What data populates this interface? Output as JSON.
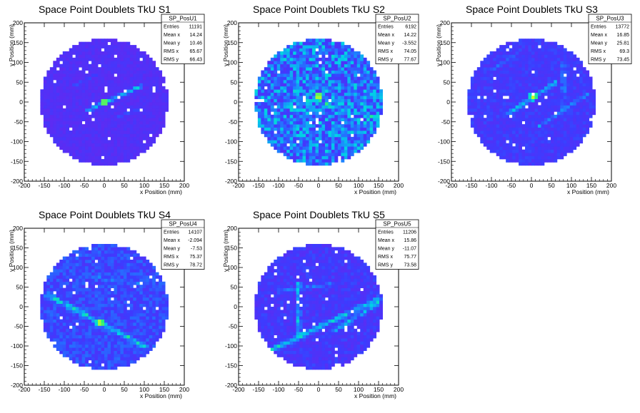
{
  "chart_data": [
    {
      "type": "heatmap",
      "title": "Space Point Doublets TkU S1",
      "xlabel": "x Position (mm)",
      "ylabel": "y Position (mm)",
      "xlim": [
        -200,
        200
      ],
      "ylim": [
        -200,
        200
      ],
      "xticks": [
        -200,
        -150,
        -100,
        -50,
        0,
        50,
        100,
        150,
        200
      ],
      "yticks": [
        -200,
        -150,
        -100,
        -50,
        0,
        50,
        100,
        150,
        200
      ],
      "stats": {
        "name": "SP_PosU1",
        "rows": [
          [
            "Entries",
            "11191"
          ],
          [
            "Mean x",
            "14.24"
          ],
          [
            "Mean y",
            "10.46"
          ],
          [
            "RMS x",
            "65.67"
          ],
          [
            "RMS y",
            "66.43"
          ]
        ]
      },
      "disk_radius": 160,
      "background_level": 0.08,
      "noise": 0.05,
      "features": [
        {
          "kind": "line",
          "x0": -40,
          "y0": -20,
          "x1": 90,
          "y1": 40,
          "width": 8,
          "level": 0.45
        },
        {
          "kind": "line",
          "x0": -80,
          "y0": 40,
          "x1": -20,
          "y1": 70,
          "width": 5,
          "level": 0.2
        },
        {
          "kind": "line",
          "x0": 30,
          "y0": -40,
          "x1": 90,
          "y1": -15,
          "width": 5,
          "level": 0.18
        },
        {
          "kind": "hot",
          "x": 0,
          "y": 0,
          "level": 0.9
        }
      ]
    },
    {
      "type": "heatmap",
      "title": "Space Point Doublets TkU S2",
      "xlabel": "x Position (mm)",
      "ylabel": "y Position (mm)",
      "xlim": [
        -200,
        200
      ],
      "ylim": [
        -200,
        200
      ],
      "xticks": [
        -200,
        -150,
        -100,
        -50,
        0,
        50,
        100,
        150,
        200
      ],
      "yticks": [
        -200,
        -150,
        -100,
        -50,
        0,
        50,
        100,
        150,
        200
      ],
      "stats": {
        "name": "SP_PosU2",
        "rows": [
          [
            "Entries",
            "6192"
          ],
          [
            "Mean x",
            "14.22"
          ],
          [
            "Mean y",
            "-3.552"
          ],
          [
            "RMS x",
            "74.05"
          ],
          [
            "RMS y",
            "77.67"
          ]
        ]
      },
      "disk_radius": 160,
      "background_level": 0.3,
      "noise": 0.22,
      "features": [
        {
          "kind": "line",
          "x0": -60,
          "y0": 20,
          "x1": 140,
          "y1": -40,
          "width": 10,
          "level": 0.15
        },
        {
          "kind": "hot",
          "x": 0,
          "y": 15,
          "level": 0.95
        }
      ]
    },
    {
      "type": "heatmap",
      "title": "Space Point Doublets TkU S3",
      "xlabel": "x Position (mm)",
      "ylabel": "y Position (mm)",
      "xlim": [
        -200,
        200
      ],
      "ylim": [
        -200,
        200
      ],
      "xticks": [
        -200,
        -150,
        -100,
        -50,
        0,
        50,
        100,
        150,
        200
      ],
      "yticks": [
        -200,
        -150,
        -100,
        -50,
        0,
        50,
        100,
        150,
        200
      ],
      "stats": {
        "name": "SP_PosU3",
        "rows": [
          [
            "Entries",
            "13772"
          ],
          [
            "Mean x",
            "16.85"
          ],
          [
            "Mean y",
            "25.81"
          ],
          [
            "RMS x",
            "69.3"
          ],
          [
            "RMS y",
            "73.45"
          ]
        ]
      },
      "disk_radius": 160,
      "background_level": 0.15,
      "noise": 0.07,
      "features": [
        {
          "kind": "line",
          "x0": -60,
          "y0": -30,
          "x1": 60,
          "y1": 50,
          "width": 8,
          "level": 0.35
        },
        {
          "kind": "line",
          "x0": 80,
          "y0": 100,
          "x1": 80,
          "y1": -20,
          "width": 7,
          "level": 0.28
        },
        {
          "kind": "line",
          "x0": 20,
          "y0": -60,
          "x1": 140,
          "y1": 20,
          "width": 6,
          "level": 0.22
        },
        {
          "kind": "line",
          "x0": -100,
          "y0": 80,
          "x1": -40,
          "y1": 120,
          "width": 6,
          "level": 0.2
        },
        {
          "kind": "hot",
          "x": 5,
          "y": 15,
          "level": 0.9
        }
      ]
    },
    {
      "type": "heatmap",
      "title": "Space Point Doublets TkU S4",
      "xlabel": "x Position (mm)",
      "ylabel": "y Position (mm)",
      "xlim": [
        -200,
        200
      ],
      "ylim": [
        -200,
        200
      ],
      "xticks": [
        -200,
        -150,
        -100,
        -50,
        0,
        50,
        100,
        150,
        200
      ],
      "yticks": [
        -200,
        -150,
        -100,
        -50,
        0,
        50,
        100,
        150,
        200
      ],
      "stats": {
        "name": "SP_PosU4",
        "rows": [
          [
            "Entries",
            "14107"
          ],
          [
            "Mean x",
            "-2.094"
          ],
          [
            "Mean y",
            "-7.53"
          ],
          [
            "RMS x",
            "75.37"
          ],
          [
            "RMS y",
            "78.72"
          ]
        ]
      },
      "disk_radius": 160,
      "background_level": 0.2,
      "noise": 0.1,
      "features": [
        {
          "kind": "line",
          "x0": -140,
          "y0": 30,
          "x1": 100,
          "y1": -100,
          "width": 10,
          "level": 0.35
        },
        {
          "kind": "line",
          "x0": -60,
          "y0": 80,
          "x1": 80,
          "y1": 60,
          "width": 8,
          "level": 0.15
        },
        {
          "kind": "hot",
          "x": -10,
          "y": -40,
          "level": 0.92
        }
      ]
    },
    {
      "type": "heatmap",
      "title": "Space Point Doublets TkU S5",
      "xlabel": "x Position (mm)",
      "ylabel": "y Position (mm)",
      "xlim": [
        -200,
        200
      ],
      "ylim": [
        -200,
        200
      ],
      "xticks": [
        -200,
        -150,
        -100,
        -50,
        0,
        50,
        100,
        150,
        200
      ],
      "yticks": [
        -200,
        -150,
        -100,
        -50,
        0,
        50,
        100,
        150,
        200
      ],
      "stats": {
        "name": "SP_PosU5",
        "rows": [
          [
            "Entries",
            "11206"
          ],
          [
            "Mean x",
            "15.86"
          ],
          [
            "Mean y",
            "-11.07"
          ],
          [
            "RMS x",
            "75.77"
          ],
          [
            "RMS y",
            "73.58"
          ]
        ]
      },
      "disk_radius": 160,
      "background_level": 0.14,
      "noise": 0.08,
      "features": [
        {
          "kind": "line",
          "x0": -50,
          "y0": 60,
          "x1": -50,
          "y1": -70,
          "width": 8,
          "level": 0.38
        },
        {
          "kind": "line",
          "x0": -120,
          "y0": -110,
          "x1": 150,
          "y1": 20,
          "width": 10,
          "level": 0.38
        },
        {
          "kind": "line",
          "x0": 40,
          "y0": -60,
          "x1": 150,
          "y1": 10,
          "width": 8,
          "level": 0.3
        },
        {
          "kind": "line",
          "x0": -100,
          "y0": 40,
          "x1": 40,
          "y1": 60,
          "width": 6,
          "level": 0.18
        }
      ]
    }
  ]
}
